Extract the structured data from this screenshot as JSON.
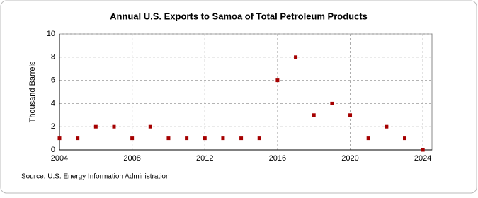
{
  "chart_data": {
    "type": "scatter",
    "title": "Annual U.S. Exports to Samoa of Total Petroleum Products",
    "y_label": "Thousand Barrels",
    "source": "Source: U.S. Energy Information Administration",
    "x": [
      2004,
      2005,
      2006,
      2007,
      2008,
      2009,
      2010,
      2011,
      2012,
      2013,
      2014,
      2015,
      2016,
      2017,
      2018,
      2019,
      2020,
      2021,
      2022,
      2023,
      2024
    ],
    "values": [
      1,
      1,
      2,
      2,
      1,
      2,
      1,
      1,
      1,
      1,
      1,
      1,
      6,
      8,
      3,
      4,
      3,
      1,
      2,
      1,
      0
    ],
    "color": "#a50000",
    "xlim": [
      2004,
      2024.5
    ],
    "xticks": [
      2004,
      2008,
      2012,
      2016,
      2020,
      2024
    ],
    "ylim": [
      0,
      10
    ],
    "yticks": [
      0,
      2,
      4,
      6,
      8,
      10
    ],
    "grid": true
  }
}
